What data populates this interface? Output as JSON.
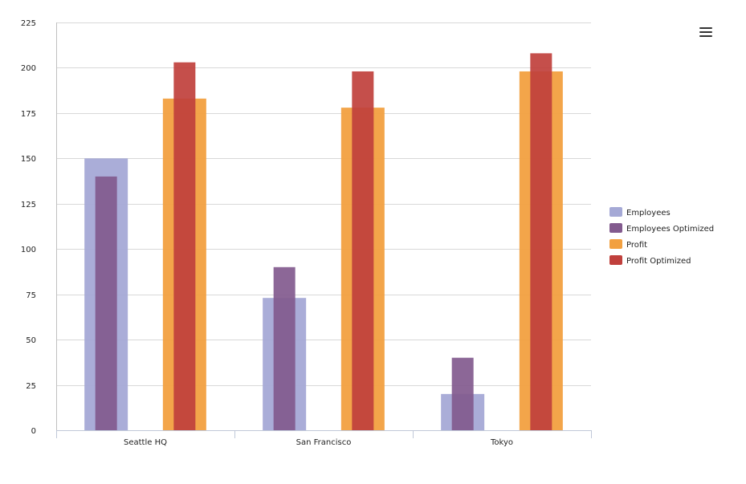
{
  "chart_data": {
    "type": "bar",
    "categories": [
      "Seattle HQ",
      "San Francisco",
      "Tokyo"
    ],
    "ylim": [
      0,
      225
    ],
    "yticks": [
      0,
      25,
      50,
      75,
      100,
      125,
      150,
      175,
      200,
      225
    ],
    "grid": true,
    "legend_position": "right",
    "series": [
      {
        "name": "Employees",
        "color": "#a5a9d6",
        "values": [
          150,
          73,
          20
        ]
      },
      {
        "name": "Employees Optimized",
        "color": "#825a8e",
        "values": [
          140,
          90,
          40
        ]
      },
      {
        "name": "Profit",
        "color": "#f2a040",
        "values": [
          183,
          178,
          198
        ]
      },
      {
        "name": "Profit Optimized",
        "color": "#c0403c",
        "values": [
          203,
          198,
          208
        ]
      }
    ]
  },
  "menu": {
    "icon": "hamburger-menu-icon"
  }
}
